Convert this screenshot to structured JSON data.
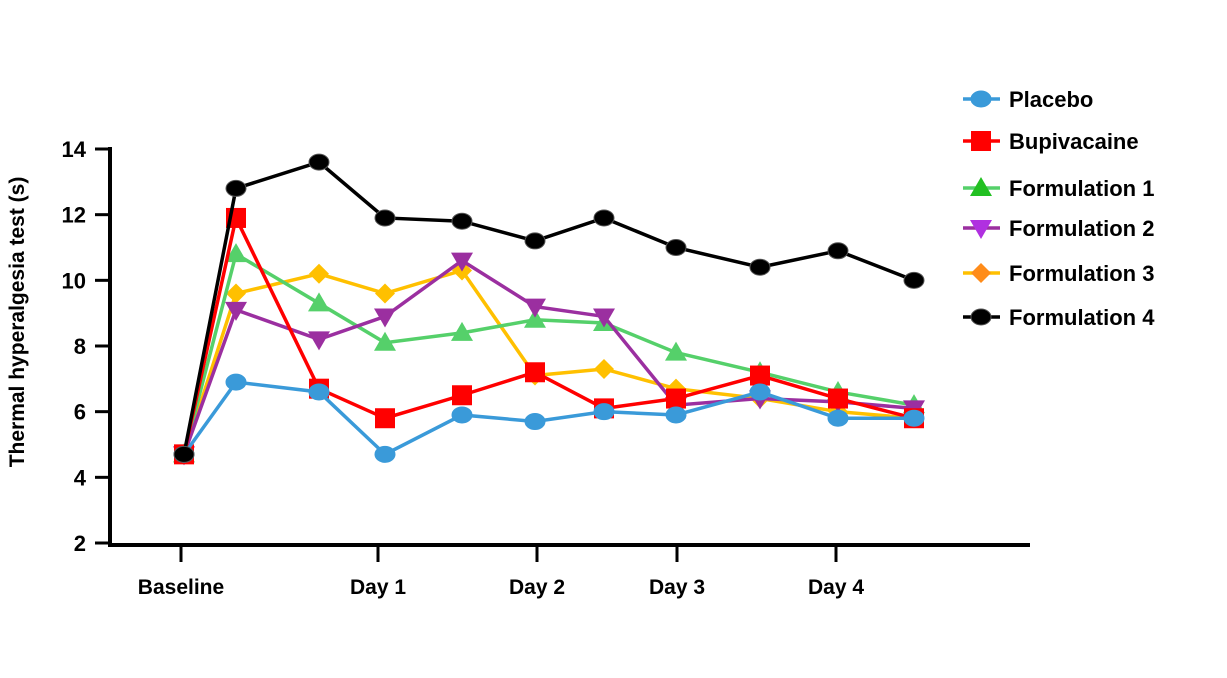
{
  "chart_data": {
    "type": "line",
    "title": "",
    "xlabel": "",
    "ylabel": "Thermal hyperalgesia test (s)",
    "ylim": [
      2,
      14
    ],
    "yticks": [
      2,
      4,
      6,
      8,
      10,
      12,
      14
    ],
    "x": [
      0,
      1,
      2,
      3,
      4,
      5,
      6,
      7,
      8,
      9,
      10
    ],
    "xticks": [
      {
        "x": 0,
        "label": "Baseline"
      },
      {
        "x": 3,
        "label": "Day 1"
      },
      {
        "x": 5,
        "label": "Day 2"
      },
      {
        "x": 7,
        "label": "Day 3"
      },
      {
        "x": 9,
        "label": "Day 4"
      }
    ],
    "legend_position": "right",
    "grid": false,
    "series": [
      {
        "name": "Placebo",
        "color": "#3a9ad9",
        "marker": "circle",
        "values": [
          4.7,
          6.9,
          6.6,
          4.7,
          5.9,
          5.7,
          6.0,
          5.9,
          6.6,
          5.8,
          5.8
        ]
      },
      {
        "name": "Bupivacaine",
        "color": "#ff0000",
        "marker": "square",
        "values": [
          4.7,
          11.9,
          6.7,
          5.8,
          6.5,
          7.2,
          6.1,
          6.4,
          7.1,
          6.4,
          5.8
        ]
      },
      {
        "name": "Formulation 1",
        "color": "#55d06a",
        "marker": "triangle-up",
        "values": [
          4.7,
          10.8,
          9.3,
          8.1,
          8.4,
          8.8,
          8.7,
          7.8,
          7.2,
          6.6,
          6.2
        ]
      },
      {
        "name": "Formulation 2",
        "color": "#9b2fa0",
        "marker": "triangle-down",
        "values": [
          4.7,
          9.1,
          8.2,
          8.9,
          10.6,
          9.2,
          8.9,
          6.2,
          6.4,
          6.3,
          6.1
        ]
      },
      {
        "name": "Formulation 3",
        "color": "#ffc000",
        "marker": "diamond",
        "values": [
          4.7,
          9.6,
          10.2,
          9.6,
          10.3,
          7.1,
          7.3,
          6.7,
          6.4,
          6.0,
          5.8
        ]
      },
      {
        "name": "Formulation 4",
        "color": "#000000",
        "marker": "circle",
        "values": [
          4.7,
          12.8,
          13.6,
          11.9,
          11.8,
          11.2,
          11.9,
          11.0,
          10.4,
          10.9,
          10.0
        ]
      }
    ]
  }
}
